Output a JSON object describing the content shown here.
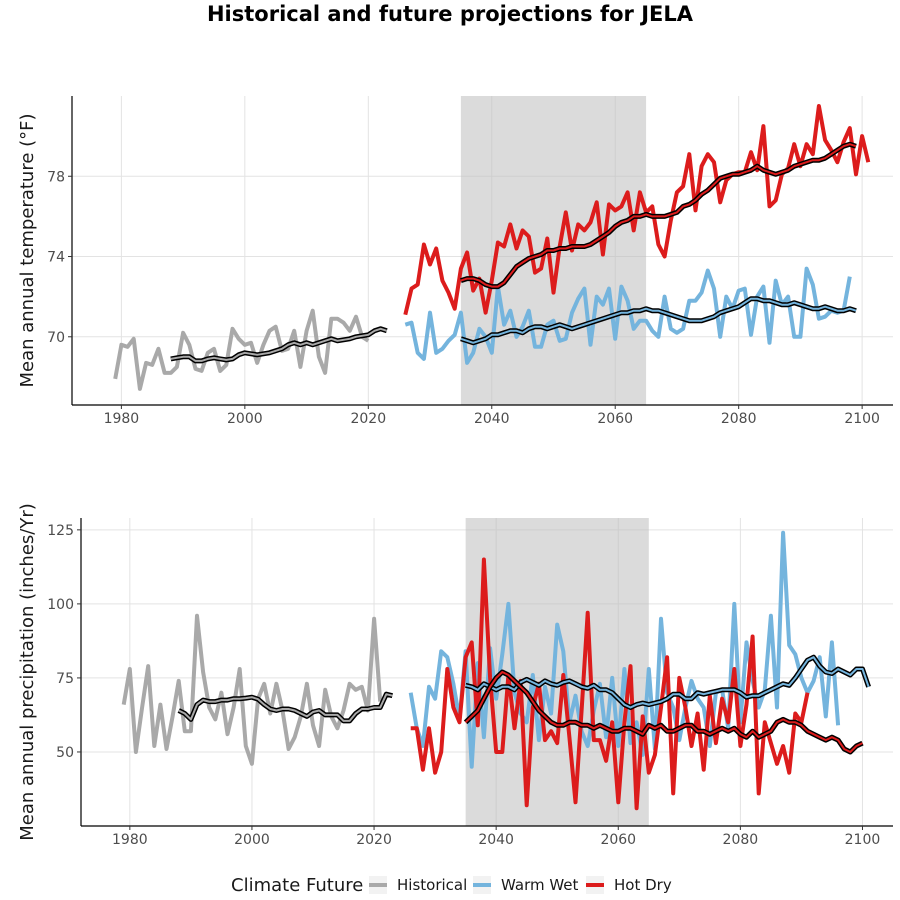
{
  "chart_data": {
    "type": "line",
    "title": "Historical and future projections for JELA",
    "legend": {
      "title": "Climate Future",
      "entries": [
        {
          "name": "Historical",
          "color": "#a9a9a9"
        },
        {
          "name": "Warm Wet",
          "color": "#74b4dd"
        },
        {
          "name": "Hot Dry",
          "color": "#dc1c1c"
        }
      ],
      "position": "bottom"
    },
    "panels": [
      {
        "ylabel": "Mean annual temperature (°F)",
        "xlim": [
          1972,
          2105
        ],
        "ylim": [
          66.6,
          82.0
        ],
        "xticks": [
          1980,
          2000,
          2020,
          2040,
          2060,
          2080,
          2100
        ],
        "yticks": [
          70,
          74,
          78
        ],
        "shaded_period": [
          2035,
          2065
        ],
        "series": [
          {
            "name": "Historical",
            "x_start": 1979,
            "values": [
              67.9,
              69.6,
              69.5,
              69.9,
              67.4,
              68.7,
              68.6,
              69.4,
              68.2,
              68.2,
              68.5,
              70.2,
              69.6,
              68.4,
              68.3,
              69.2,
              69.4,
              68.3,
              68.6,
              70.4,
              69.9,
              69.6,
              69.7,
              68.7,
              69.6,
              70.3,
              70.5,
              69.3,
              69.4,
              70.3,
              68.5,
              70.3,
              71.3,
              69.0,
              68.2,
              70.9,
              70.9,
              70.7,
              70.3,
              71.0,
              70.0,
              69.8
            ]
          },
          {
            "name": "Warm Wet",
            "x_start": 2026,
            "values": [
              70.6,
              70.7,
              69.2,
              68.9,
              71.2,
              69.2,
              69.4,
              69.8,
              70.1,
              71.2,
              68.7,
              69.2,
              70.4,
              70.0,
              69.2,
              72.5,
              70.6,
              71.3,
              70.0,
              70.5,
              71.3,
              69.5,
              69.5,
              70.6,
              70.8,
              69.8,
              69.9,
              71.2,
              71.9,
              72.4,
              69.6,
              72.0,
              71.6,
              72.4,
              69.9,
              72.5,
              71.8,
              70.4,
              70.8,
              70.8,
              70.3,
              70.0,
              72.0,
              70.4,
              70.2,
              70.4,
              71.8,
              71.8,
              72.2,
              73.3,
              72.4,
              70.0,
              72.0,
              71.4,
              72.3,
              72.4,
              70.1,
              72.0,
              72.5,
              69.7,
              72.8,
              71.6,
              72.0,
              70.0,
              70.0,
              73.4,
              72.6,
              70.9,
              71.0,
              71.3,
              71.2,
              71.3,
              73.0
            ]
          },
          {
            "name": "Hot Dry",
            "x_start": 2026,
            "values": [
              71.1,
              72.4,
              72.6,
              74.6,
              73.6,
              74.4,
              72.8,
              72.2,
              71.4,
              73.4,
              74.2,
              72.3,
              72.9,
              71.2,
              72.8,
              74.7,
              74.5,
              75.6,
              74.4,
              75.3,
              75.0,
              73.2,
              73.4,
              74.9,
              72.2,
              74.5,
              76.2,
              74.3,
              75.6,
              75.3,
              75.7,
              76.7,
              74.1,
              76.6,
              76.3,
              76.5,
              77.2,
              75.3,
              77.2,
              76.2,
              76.5,
              74.6,
              74.0,
              75.8,
              77.2,
              77.5,
              79.1,
              76.3,
              78.5,
              79.1,
              78.7,
              76.7,
              77.8,
              78.1,
              78.2,
              78.2,
              79.2,
              78.3,
              80.5,
              76.5,
              76.8,
              78.1,
              78.4,
              79.6,
              78.5,
              79.6,
              79.1,
              81.5,
              79.8,
              79.3,
              78.7,
              79.7,
              80.4,
              78.1,
              80.0,
              78.7
            ]
          },
          {
            "name": "Historical",
            "smoothed": true,
            "x_start": 1988,
            "values": [
              68.9,
              68.95,
              69.0,
              69.0,
              68.8,
              68.8,
              68.9,
              68.95,
              68.9,
              68.85,
              68.9,
              69.1,
              69.2,
              69.15,
              69.1,
              69.15,
              69.2,
              69.3,
              69.4,
              69.6,
              69.7,
              69.6,
              69.7,
              69.6,
              69.7,
              69.8,
              69.9,
              69.8,
              69.85,
              69.9,
              70.0,
              70.05,
              70.1,
              70.3,
              70.4,
              70.3
            ]
          },
          {
            "name": "Warm Wet",
            "smoothed": true,
            "x_start": 2035,
            "values": [
              69.9,
              69.8,
              69.7,
              69.8,
              69.9,
              70.1,
              70.1,
              70.2,
              70.3,
              70.3,
              70.2,
              70.4,
              70.5,
              70.5,
              70.4,
              70.5,
              70.6,
              70.5,
              70.4,
              70.5,
              70.6,
              70.7,
              70.8,
              70.9,
              71.0,
              71.1,
              71.2,
              71.2,
              71.3,
              71.3,
              71.4,
              71.3,
              71.3,
              71.2,
              71.1,
              71.0,
              70.9,
              70.8,
              70.8,
              70.8,
              70.9,
              71.0,
              71.2,
              71.3,
              71.4,
              71.5,
              71.7,
              71.9,
              71.9,
              71.8,
              71.8,
              71.7,
              71.6,
              71.6,
              71.7,
              71.6,
              71.5,
              71.4,
              71.4,
              71.5,
              71.4,
              71.3,
              71.3,
              71.4,
              71.3
            ]
          },
          {
            "name": "Hot Dry",
            "smoothed": true,
            "x_start": 2035,
            "values": [
              72.8,
              72.9,
              72.9,
              72.8,
              72.6,
              72.5,
              72.5,
              72.7,
              73.1,
              73.5,
              73.7,
              73.9,
              74.0,
              74.1,
              74.3,
              74.3,
              74.4,
              74.4,
              74.5,
              74.5,
              74.5,
              74.6,
              74.8,
              75.0,
              75.2,
              75.5,
              75.7,
              75.8,
              76.0,
              76.0,
              76.1,
              76.0,
              76.0,
              76.0,
              76.1,
              76.2,
              76.5,
              76.6,
              76.8,
              77.1,
              77.3,
              77.6,
              77.9,
              78.0,
              78.1,
              78.1,
              78.2,
              78.3,
              78.5,
              78.3,
              78.2,
              78.1,
              78.2,
              78.3,
              78.5,
              78.6,
              78.7,
              78.8,
              78.8,
              78.9,
              79.1,
              79.3,
              79.5,
              79.6,
              79.5
            ]
          }
        ]
      },
      {
        "ylabel": "Mean annual precipitation (inches/Yr)",
        "xlim": [
          1972,
          2105
        ],
        "ylim": [
          25,
          129
        ],
        "xticks": [
          1980,
          2000,
          2020,
          2040,
          2060,
          2080,
          2100
        ],
        "yticks": [
          50,
          75,
          100,
          125
        ],
        "shaded_period": [
          2035,
          2065
        ],
        "series": [
          {
            "name": "Historical",
            "x_start": 1979,
            "values": [
              66,
              78,
              50,
              65,
              79,
              52,
              66,
              51,
              62,
              74,
              57,
              57,
              96,
              77,
              65,
              61,
              70,
              56,
              65,
              78,
              52,
              46,
              68,
              73,
              63,
              73,
              64,
              51,
              55,
              62,
              73,
              59,
              52,
              71,
              62,
              58,
              64,
              73,
              71,
              72,
              64,
              95,
              67
            ]
          },
          {
            "name": "Warm Wet",
            "x_start": 2026,
            "values": [
              70,
              58,
              52,
              72,
              68,
              84,
              82,
              73,
              61,
              84,
              45,
              80,
              55,
              85,
              68,
              83,
              100,
              70,
              63,
              60,
              76,
              54,
              72,
              63,
              93,
              84,
              60,
              69,
              57,
              52,
              64,
              73,
              55,
              75,
              52,
              78,
              53,
              60,
              49,
              78,
              51,
              95,
              70,
              65,
              54,
              65,
              74,
              68,
              65,
              52,
              70,
              71,
              58,
              100,
              60,
              87,
              74,
              65,
              71,
              96,
              65,
              124,
              86,
              83,
              75,
              70,
              74,
              82,
              62,
              87,
              59
            ]
          },
          {
            "name": "Hot Dry",
            "x_start": 2026,
            "values": [
              58,
              58,
              44,
              58,
              43,
              50,
              78,
              65,
              60,
              82,
              87,
              59,
              115,
              75,
              50,
              50,
              76,
              58,
              74,
              32,
              65,
              73,
              54,
              57,
              53,
              76,
              55,
              33,
              64,
              97,
              54,
              54,
              47,
              60,
              33,
              60,
              79,
              31,
              62,
              43,
              49,
              65,
              82,
              36,
              75,
              65,
              52,
              63,
              44,
              69,
              53,
              68,
              60,
              78,
              52,
              66,
              89,
              36,
              60,
              53,
              46,
              52,
              43,
              63,
              60,
              70
            ]
          },
          {
            "name": "Historical",
            "smoothed": true,
            "x_start": 1988,
            "values": [
              64,
              63,
              61,
              66,
              67.5,
              67,
              67,
              67.5,
              67.5,
              68,
              68,
              68.2,
              68.5,
              67.8,
              66,
              64.5,
              64,
              64.5,
              64.5,
              64,
              63,
              62,
              63.5,
              64,
              62.5,
              62.5,
              62.5,
              60.5,
              60.5,
              63,
              64.5,
              64.5,
              65,
              65,
              69.5,
              69
            ]
          },
          {
            "name": "Warm Wet",
            "smoothed": true,
            "x_start": 2035,
            "values": [
              72.5,
              72,
              71,
              73,
              72,
              71,
              72,
              72,
              71,
              73.5,
              74.5,
              73.5,
              72.5,
              74,
              73,
              72.5,
              73.5,
              74,
              73,
              72,
              71.5,
              72.5,
              71,
              71,
              70,
              68,
              66,
              65,
              66,
              66.5,
              66,
              66.5,
              67,
              68,
              69.5,
              69.5,
              68,
              68,
              70,
              69.5,
              70,
              70.5,
              71,
              71,
              71,
              70,
              68.5,
              69,
              69,
              70,
              71,
              72,
              73,
              72.5,
              75,
              78,
              81,
              82,
              79,
              77,
              76.5,
              78,
              77,
              76,
              78,
              78,
              72
            ]
          },
          {
            "name": "Hot Dry",
            "smoothed": true,
            "x_start": 2035,
            "values": [
              60,
              62,
              64,
              68,
              72,
              75,
              77,
              76,
              74,
              72,
              70,
              67,
              64,
              62,
              60,
              59,
              59,
              60,
              60,
              59,
              59,
              58,
              59,
              58,
              57,
              57,
              58,
              58,
              57,
              56,
              59,
              58,
              59,
              57,
              57,
              58,
              59,
              59,
              57,
              57,
              56,
              57,
              58,
              57,
              58,
              56,
              55,
              57,
              55,
              56,
              57,
              60,
              61,
              60,
              60,
              59,
              57,
              56,
              55,
              54,
              55,
              54,
              51,
              50,
              52,
              53
            ]
          }
        ]
      }
    ]
  }
}
